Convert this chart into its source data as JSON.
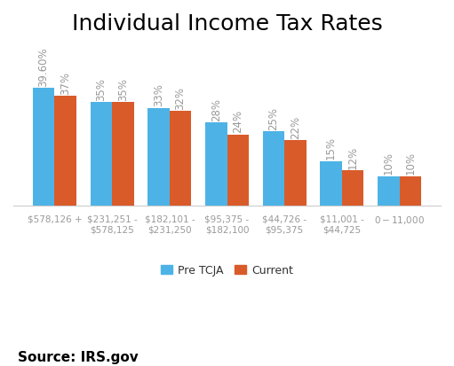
{
  "title": "Individual Income Tax Rates",
  "categories": [
    "$578,126 +",
    "$231,251 -\n$578,125",
    "$182,101 -\n$231,250",
    "$95,375 -\n$182,100",
    "$44,726 -\n$95,375",
    "$11,001 -\n$44,725",
    "$0 - $11,000"
  ],
  "pre_tcja": [
    39.6,
    35,
    33,
    28,
    25,
    15,
    10
  ],
  "current": [
    37,
    35,
    32,
    24,
    22,
    12,
    10
  ],
  "pre_tcja_labels": [
    "39.60%",
    "35%",
    "33%",
    "28%",
    "25%",
    "15%",
    "10%"
  ],
  "current_labels": [
    "37%",
    "35%",
    "32%",
    "24%",
    "22%",
    "12%",
    "10%"
  ],
  "bar_color_pre": "#4DB3E6",
  "bar_color_cur": "#D95B2A",
  "source": "Source: IRS.gov",
  "legend_pre": "Pre TCJA",
  "legend_cur": "Current",
  "background_color": "#FFFFFF",
  "label_color": "#999999",
  "xtick_color": "#999999",
  "title_fontsize": 18,
  "label_fontsize": 8.5,
  "source_fontsize": 11,
  "ylim": [
    0,
    55
  ]
}
